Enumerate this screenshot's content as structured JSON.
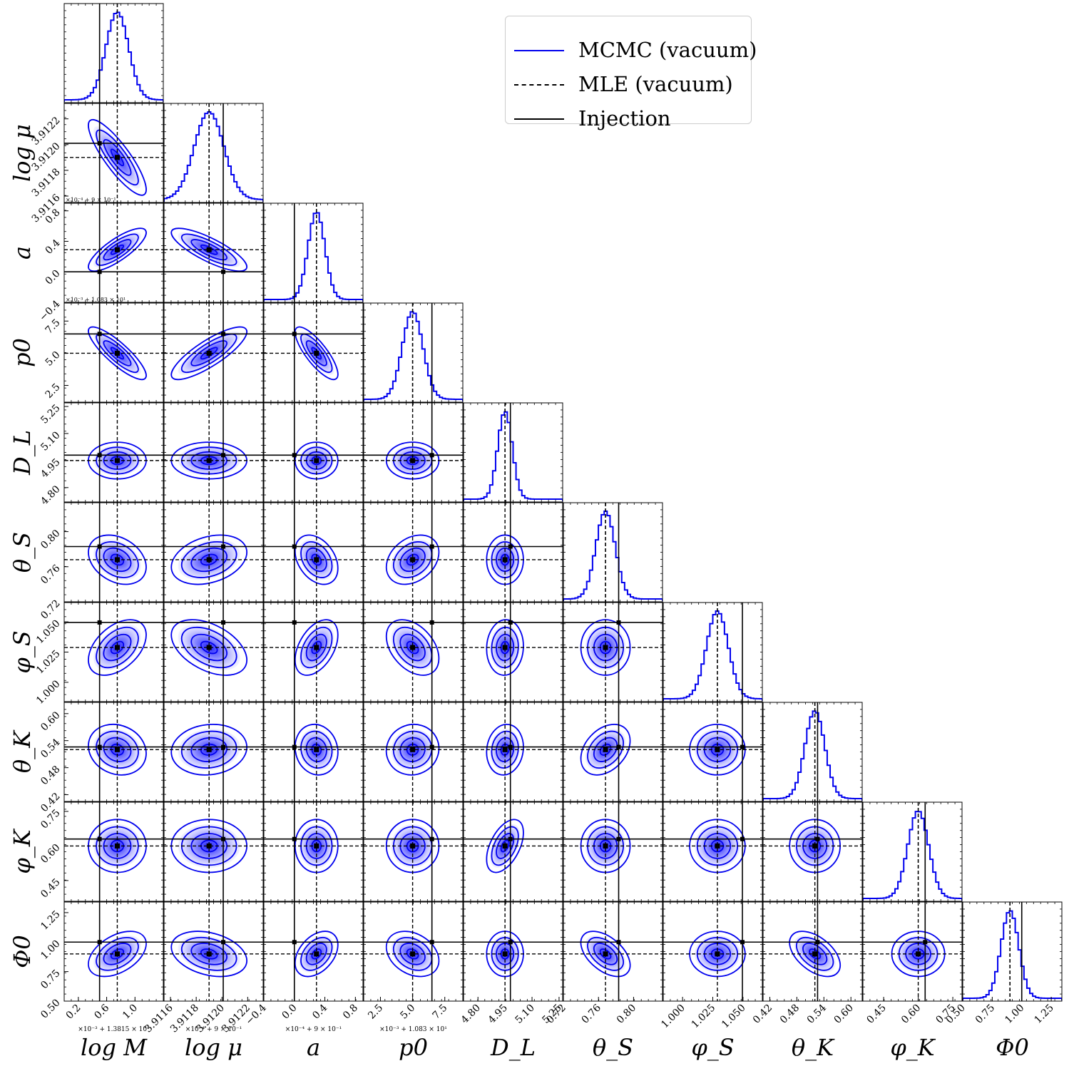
{
  "chart_data": {
    "type": "corner",
    "parameters": [
      {
        "label": "log M",
        "sym": "M",
        "ticks": [
          "0.2",
          "0.6",
          "1.0"
        ],
        "tick_vals": [
          0.2,
          0.6,
          1.0
        ],
        "range": [
          0.0,
          1.4
        ],
        "injection": 0.5,
        "mle": 0.75,
        "offset": "×10⁻³ + 1.3815 × 10¹"
      },
      {
        "label": "log μ",
        "sym": "mu",
        "ticks": [
          "3.9116",
          "3.9118",
          "3.9120",
          "3.9122"
        ],
        "tick_vals": [
          3.9116,
          3.9118,
          3.912,
          3.9122
        ],
        "range": [
          3.91155,
          3.91232
        ],
        "injection": 3.91201,
        "mle": 3.9119,
        "offset": "×10⁻⁴ + 9 × 10⁻¹"
      },
      {
        "label": "a",
        "sym": "a",
        "ticks": [
          "−0.4",
          "0.0",
          "0.4",
          "0.8"
        ],
        "tick_vals": [
          -0.4,
          0.0,
          0.4,
          0.8
        ],
        "range": [
          -0.4,
          0.9
        ],
        "injection": 0.0,
        "mle": 0.29,
        "offset": "×10⁻⁴ + 9 × 10⁻¹"
      },
      {
        "label": "p0",
        "sym": "p",
        "ticks": [
          "2.5",
          "5.0",
          "7.5"
        ],
        "tick_vals": [
          2.5,
          5.0,
          7.5
        ],
        "range": [
          1.2,
          8.9
        ],
        "injection": 6.5,
        "mle": 5.0,
        "offset": "×10⁻³ + 1.083 × 10¹"
      },
      {
        "label": "D_L",
        "sym": "D",
        "ticks": [
          "4.80",
          "4.95",
          "5.10",
          "5.25"
        ],
        "tick_vals": [
          4.8,
          4.95,
          5.1,
          5.25
        ],
        "range": [
          4.72,
          5.27
        ],
        "injection": 4.98,
        "mle": 4.95,
        "offset": ""
      },
      {
        "label": "θ_S",
        "sym": "thS",
        "ticks": [
          "0.72",
          "0.76",
          "0.80"
        ],
        "tick_vals": [
          0.72,
          0.76,
          0.8
        ],
        "range": [
          0.72,
          0.833
        ],
        "injection": 0.783,
        "mle": 0.768,
        "offset": ""
      },
      {
        "label": "φ_S",
        "sym": "phS",
        "ticks": [
          "1.000",
          "1.025",
          "1.050"
        ],
        "tick_vals": [
          1.0,
          1.025,
          1.05
        ],
        "range": [
          0.984,
          1.066
        ],
        "injection": 1.0495,
        "mle": 1.0288,
        "offset": ""
      },
      {
        "label": "θ_K",
        "sym": "thK",
        "ticks": [
          "0.42",
          "0.48",
          "0.54",
          "0.60"
        ],
        "tick_vals": [
          0.42,
          0.48,
          0.54,
          0.6
        ],
        "range": [
          0.405,
          0.625
        ],
        "injection": 0.526,
        "mle": 0.52,
        "offset": ""
      },
      {
        "label": "φ_K",
        "sym": "phK",
        "ticks": [
          "0.45",
          "0.60",
          "0.75"
        ],
        "tick_vals": [
          0.45,
          0.6,
          0.75
        ],
        "range": [
          0.36,
          0.79
        ],
        "injection": 0.63,
        "mle": 0.6,
        "offset": ""
      },
      {
        "label": "Φ0",
        "sym": "Phi",
        "ticks": [
          "0.50",
          "0.75",
          "1.00",
          "1.25"
        ],
        "tick_vals": [
          0.5,
          0.75,
          1.0,
          1.25
        ],
        "range": [
          0.5,
          1.34
        ],
        "injection": 1.0,
        "mle": 0.9,
        "offset": ""
      }
    ],
    "correlations": [
      [],
      [
        -0.85
      ],
      [
        0.8,
        -0.8
      ],
      [
        -0.85,
        0.82,
        -0.8
      ],
      [
        0.0,
        0.0,
        0.0,
        0.0
      ],
      [
        -0.3,
        0.3,
        -0.35,
        0.3,
        0.0
      ],
      [
        0.45,
        -0.45,
        0.45,
        -0.4,
        0.05,
        0.0
      ],
      [
        -0.15,
        0.1,
        -0.1,
        0.05,
        0.1,
        0.35,
        0.0
      ],
      [
        0.0,
        0.0,
        0.0,
        0.0,
        0.5,
        0.0,
        0.0,
        0.0
      ],
      [
        0.45,
        -0.3,
        0.4,
        -0.3,
        0.0,
        -0.5,
        0.0,
        -0.5,
        0.0
      ]
    ],
    "sigmas": [
      0.16,
      0.000115,
      0.11,
      0.8,
      0.04,
      0.011,
      0.009,
      0.022,
      0.045,
      0.075
    ],
    "colors": {
      "mcmc": "#0000ee",
      "mle": "#000000",
      "injection": "#000000"
    },
    "legend": [
      {
        "label": "MCMC (vacuum)",
        "style": "solid-blue"
      },
      {
        "label": "MLE (vacuum)",
        "style": "dashed-black"
      },
      {
        "label": "Injection",
        "style": "solid-black"
      }
    ],
    "legend_position": "top-right"
  }
}
